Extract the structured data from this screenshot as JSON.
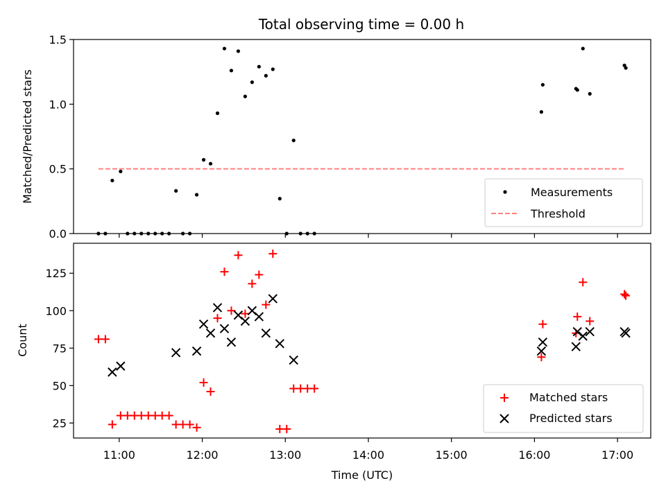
{
  "chart_data": [
    {
      "type": "scatter",
      "title": "Total observing time = 0.00 h",
      "xlabel": "",
      "ylabel": "Matched/Predicted stars",
      "xlim": [
        "10:27",
        "17:24"
      ],
      "ylim": [
        0,
        1.5
      ],
      "yticks": [
        0.0,
        0.5,
        1.0,
        1.5
      ],
      "ytick_labels": [
        "0.0",
        "0.5",
        "1.0",
        "1.5"
      ],
      "grid": false,
      "legend_position": "lower-right",
      "series": [
        {
          "name": "Measurements",
          "marker": "dot",
          "color": "#000000",
          "x": [
            "10:45",
            "10:50",
            "10:55",
            "11:01",
            "11:06",
            "11:11",
            "11:16",
            "11:21",
            "11:26",
            "11:31",
            "11:36",
            "11:41",
            "11:46",
            "11:51",
            "11:56",
            "12:01",
            "12:06",
            "12:11",
            "12:16",
            "12:21",
            "12:26",
            "12:31",
            "12:36",
            "12:41",
            "12:46",
            "12:51",
            "12:56",
            "13:01",
            "13:06",
            "13:11",
            "13:16",
            "13:21",
            "16:05",
            "16:06",
            "16:30",
            "16:31",
            "16:35",
            "16:40",
            "17:05",
            "17:06"
          ],
          "y": [
            0.0,
            0.0,
            0.41,
            0.48,
            0.0,
            0.0,
            0.0,
            0.0,
            0.0,
            0.0,
            0.0,
            0.33,
            0.0,
            0.0,
            0.3,
            0.57,
            0.54,
            0.93,
            1.43,
            1.26,
            1.41,
            1.06,
            1.17,
            1.29,
            1.22,
            1.27,
            0.27,
            0.0,
            0.72,
            0.0,
            0.0,
            0.0,
            0.94,
            1.15,
            1.12,
            1.11,
            1.43,
            1.08,
            1.3,
            1.28
          ]
        },
        {
          "name": "Threshold",
          "style": "dashed",
          "color": "#ff8080",
          "x": [
            "10:45",
            "17:05"
          ],
          "y": [
            0.5,
            0.5
          ]
        }
      ]
    },
    {
      "type": "scatter",
      "title": "",
      "xlabel": "Time (UTC)",
      "ylabel": "Count",
      "xlim": [
        "10:27",
        "17:24"
      ],
      "ylim": [
        15,
        145
      ],
      "yticks": [
        25,
        50,
        75,
        100,
        125
      ],
      "ytick_labels": [
        "25",
        "50",
        "75",
        "100",
        "125"
      ],
      "xticks": [
        "11:00",
        "12:00",
        "13:00",
        "14:00",
        "15:00",
        "16:00",
        "17:00"
      ],
      "xtick_labels": [
        "11:00",
        "12:00",
        "13:00",
        "14:00",
        "15:00",
        "16:00",
        "17:00"
      ],
      "grid": false,
      "legend_position": "lower-right",
      "series": [
        {
          "name": "Matched stars",
          "marker": "plus",
          "color": "#ff0000",
          "x": [
            "10:45",
            "10:50",
            "10:55",
            "11:01",
            "11:06",
            "11:11",
            "11:16",
            "11:21",
            "11:26",
            "11:31",
            "11:36",
            "11:41",
            "11:46",
            "11:51",
            "11:56",
            "12:01",
            "12:06",
            "12:11",
            "12:16",
            "12:21",
            "12:26",
            "12:31",
            "12:36",
            "12:41",
            "12:46",
            "12:51",
            "12:56",
            "13:01",
            "13:06",
            "13:11",
            "13:16",
            "13:21",
            "16:05",
            "16:06",
            "16:30",
            "16:31",
            "16:35",
            "16:40",
            "17:05",
            "17:06"
          ],
          "y": [
            81,
            81,
            24,
            30,
            30,
            30,
            30,
            30,
            30,
            30,
            30,
            24,
            24,
            24,
            22,
            52,
            46,
            95,
            126,
            100,
            137,
            98,
            118,
            124,
            104,
            138,
            21,
            21,
            48,
            48,
            48,
            48,
            69,
            91,
            85,
            96,
            119,
            93,
            111,
            110
          ]
        },
        {
          "name": "Predicted stars",
          "marker": "x",
          "color": "#000000",
          "x": [
            "10:55",
            "11:01",
            "11:41",
            "11:56",
            "12:01",
            "12:06",
            "12:11",
            "12:16",
            "12:21",
            "12:26",
            "12:31",
            "12:36",
            "12:41",
            "12:46",
            "12:51",
            "12:56",
            "13:06",
            "16:05",
            "16:06",
            "16:30",
            "16:31",
            "16:35",
            "16:40",
            "17:05",
            "17:06"
          ],
          "y": [
            59,
            63,
            72,
            73,
            91,
            85,
            102,
            88,
            79,
            97,
            93,
            100,
            96,
            85,
            108,
            78,
            67,
            73,
            79,
            76,
            86,
            83,
            86,
            86,
            85
          ]
        }
      ]
    }
  ]
}
